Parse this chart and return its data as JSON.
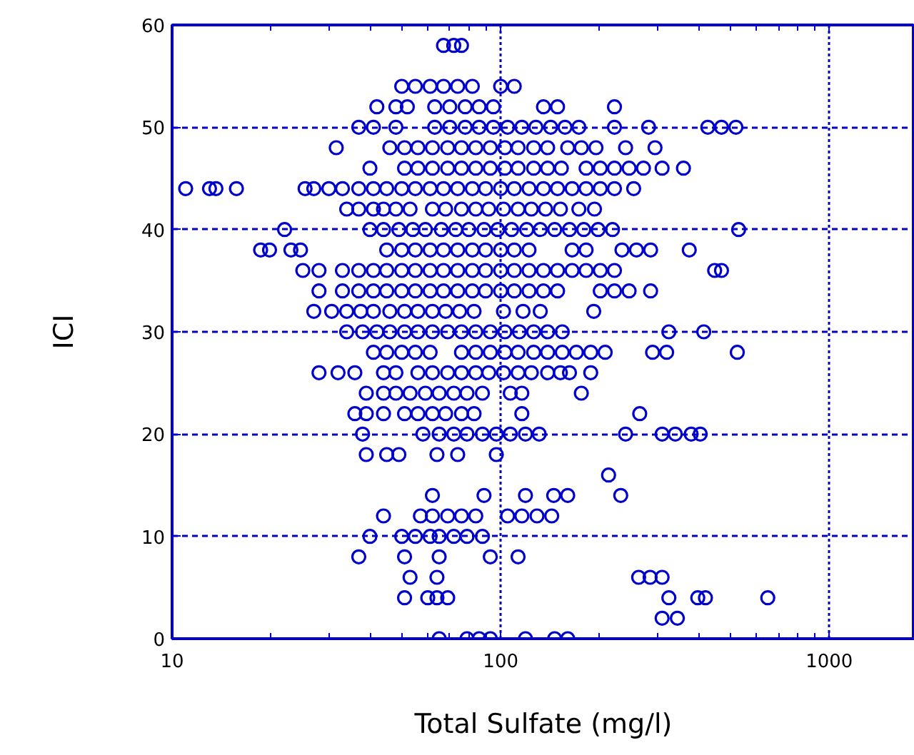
{
  "chart_data": {
    "type": "scatter",
    "xlabel": "Total Sulfate (mg/l)",
    "ylabel": "ICI",
    "log": "x",
    "xlim": [
      10,
      1820
    ],
    "ylim": [
      0,
      60
    ],
    "xticks": [
      10,
      100,
      1000
    ],
    "yticks": [
      0,
      10,
      20,
      30,
      40,
      50,
      60
    ],
    "grid": true,
    "marker": "circle",
    "series": [
      {
        "color": "#0000cc",
        "x": [
          67,
          72,
          76
        ],
        "values": [
          58,
          58,
          58
        ]
      },
      {
        "color": "#0000cc",
        "x": [
          50,
          55,
          61,
          67,
          74,
          82,
          100,
          110
        ],
        "values": [
          54,
          54,
          54,
          54,
          54,
          54,
          54,
          54
        ]
      },
      {
        "color": "#0000cc",
        "x": [
          42,
          48,
          52,
          63,
          70,
          78,
          86,
          95,
          135,
          149,
          222
        ],
        "values": [
          52,
          52,
          52,
          52,
          52,
          52,
          52,
          52,
          52,
          52,
          52
        ]
      },
      {
        "color": "#0000cc",
        "x": [
          37,
          41,
          48,
          63,
          70,
          78,
          86,
          95,
          105,
          116,
          128,
          142,
          157,
          173,
          222,
          282,
          427,
          470,
          520
        ],
        "values": [
          50,
          50,
          50,
          50,
          50,
          50,
          50,
          50,
          50,
          50,
          50,
          50,
          50,
          50,
          50,
          50,
          50,
          50,
          50
        ]
      },
      {
        "color": "#0000cc",
        "x": [
          31.6,
          46,
          51,
          56,
          62,
          69,
          76,
          84,
          93,
          103,
          113,
          126,
          139,
          160,
          176,
          195,
          240,
          295
        ],
        "values": [
          48,
          48,
          48,
          48,
          48,
          48,
          48,
          48,
          48,
          48,
          48,
          48,
          48,
          48,
          48,
          48,
          48,
          48
        ]
      },
      {
        "color": "#0000cc",
        "x": [
          40,
          51,
          56,
          62,
          69,
          76,
          84,
          93,
          103,
          113,
          126,
          139,
          153,
          182,
          201,
          222,
          246,
          272,
          310,
          360
        ],
        "values": [
          46,
          46,
          46,
          46,
          46,
          46,
          46,
          46,
          46,
          46,
          46,
          46,
          46,
          46,
          46,
          46,
          46,
          46,
          46,
          46
        ]
      },
      {
        "color": "#0000cc",
        "x": [
          11,
          13,
          13.6,
          15.7,
          25.4,
          27,
          30,
          33,
          37,
          41,
          45,
          50,
          55,
          61,
          67,
          74,
          82,
          90,
          100,
          110,
          122,
          135,
          149,
          165,
          182,
          201,
          222,
          254
        ],
        "values": [
          44,
          44,
          44,
          44,
          44,
          44,
          44,
          44,
          44,
          44,
          44,
          44,
          44,
          44,
          44,
          44,
          44,
          44,
          44,
          44,
          44,
          44,
          44,
          44,
          44,
          44,
          44,
          44
        ]
      },
      {
        "color": "#0000cc",
        "x": [
          34,
          37,
          41,
          44,
          48,
          53,
          62,
          68,
          76,
          84,
          92,
          102,
          113,
          124,
          137,
          152,
          173,
          193
        ],
        "values": [
          42,
          42,
          42,
          42,
          42,
          42,
          42,
          42,
          42,
          42,
          42,
          42,
          42,
          42,
          42,
          42,
          42,
          42
        ]
      },
      {
        "color": "#0000cc",
        "x": [
          22,
          40,
          44,
          49,
          54,
          59,
          66,
          73,
          80,
          89,
          98,
          108,
          120,
          132,
          146,
          162,
          179,
          198,
          219,
          530
        ],
        "values": [
          40,
          40,
          40,
          40,
          40,
          40,
          40,
          40,
          40,
          40,
          40,
          40,
          40,
          40,
          40,
          40,
          40,
          40,
          40,
          40
        ]
      },
      {
        "color": "#0000cc",
        "x": [
          18.6,
          19.8,
          23,
          24.6,
          45,
          50,
          55,
          61,
          67,
          74,
          82,
          90,
          100,
          110,
          122,
          165,
          182,
          234,
          259,
          286,
          375
        ],
        "values": [
          38,
          38,
          38,
          38,
          38,
          38,
          38,
          38,
          38,
          38,
          38,
          38,
          38,
          38,
          38,
          38,
          38,
          38,
          38,
          38,
          38
        ]
      },
      {
        "color": "#0000cc",
        "x": [
          25,
          28,
          33,
          37,
          41,
          45,
          50,
          55,
          61,
          67,
          74,
          82,
          90,
          100,
          110,
          122,
          135,
          149,
          165,
          182,
          201,
          222,
          448,
          470
        ],
        "values": [
          36,
          36,
          36,
          36,
          36,
          36,
          36,
          36,
          36,
          36,
          36,
          36,
          36,
          36,
          36,
          36,
          36,
          36,
          36,
          36,
          36,
          36,
          36,
          36
        ]
      },
      {
        "color": "#0000cc",
        "x": [
          28,
          33,
          37,
          41,
          45,
          50,
          55,
          61,
          67,
          74,
          82,
          90,
          100,
          110,
          122,
          135,
          149,
          201,
          222,
          246,
          286
        ],
        "values": [
          34,
          34,
          34,
          34,
          34,
          34,
          34,
          34,
          34,
          34,
          34,
          34,
          34,
          34,
          34,
          34,
          34,
          34,
          34,
          34,
          34
        ]
      },
      {
        "color": "#0000cc",
        "x": [
          27,
          30.6,
          34,
          37.5,
          41,
          46,
          51,
          56,
          62,
          68,
          75,
          83,
          102,
          117,
          132,
          192
        ],
        "values": [
          32,
          32,
          32,
          32,
          32,
          32,
          32,
          32,
          32,
          32,
          32,
          32,
          32,
          32,
          32,
          32
        ]
      },
      {
        "color": "#0000cc",
        "x": [
          34,
          38,
          42,
          46,
          51,
          56,
          62,
          69,
          76,
          84,
          93,
          103,
          114,
          126,
          139,
          154,
          325,
          415
        ],
        "values": [
          30,
          30,
          30,
          30,
          30,
          30,
          30,
          30,
          30,
          30,
          30,
          30,
          30,
          30,
          30,
          30,
          30,
          30
        ]
      },
      {
        "color": "#0000cc",
        "x": [
          41,
          45,
          50,
          55,
          61,
          76,
          84,
          93,
          103,
          113,
          126,
          139,
          154,
          170,
          188,
          208,
          290,
          320,
          525
        ],
        "values": [
          28,
          28,
          28,
          28,
          28,
          28,
          28,
          28,
          28,
          28,
          28,
          28,
          28,
          28,
          28,
          28,
          28,
          28,
          28
        ]
      },
      {
        "color": "#0000cc",
        "x": [
          28,
          32,
          36,
          44,
          48,
          56,
          62,
          69,
          76,
          84,
          92,
          102,
          113,
          124,
          139,
          152,
          162,
          188
        ],
        "values": [
          26,
          26,
          26,
          26,
          26,
          26,
          26,
          26,
          26,
          26,
          26,
          26,
          26,
          26,
          26,
          26,
          26,
          26
        ]
      },
      {
        "color": "#0000cc",
        "x": [
          39,
          44,
          48,
          53,
          59,
          65,
          72,
          79,
          88,
          107,
          116,
          176
        ],
        "values": [
          24,
          24,
          24,
          24,
          24,
          24,
          24,
          24,
          24,
          24,
          24,
          24
        ]
      },
      {
        "color": "#0000cc",
        "x": [
          36,
          39,
          44,
          51,
          56,
          62,
          68,
          76,
          83,
          116,
          265
        ],
        "values": [
          22,
          22,
          22,
          22,
          22,
          22,
          22,
          22,
          22,
          22,
          22
        ]
      },
      {
        "color": "#0000cc",
        "x": [
          38,
          58,
          65,
          72,
          79,
          88,
          97,
          107,
          119,
          131,
          240,
          310,
          340,
          380,
          405
        ],
        "values": [
          20,
          20,
          20,
          20,
          20,
          20,
          20,
          20,
          20,
          20,
          20,
          20,
          20,
          20,
          20
        ]
      },
      {
        "color": "#0000cc",
        "x": [
          39,
          45,
          49,
          64,
          74,
          97
        ],
        "values": [
          18,
          18,
          18,
          18,
          18,
          18
        ]
      },
      {
        "color": "#0000cc",
        "x": [
          213
        ],
        "values": [
          16
        ]
      },
      {
        "color": "#0000cc",
        "x": [
          62,
          89,
          119,
          145,
          160,
          232
        ],
        "values": [
          14,
          14,
          14,
          14,
          14,
          14
        ]
      },
      {
        "color": "#0000cc",
        "x": [
          44,
          57,
          62,
          69,
          76,
          84,
          105,
          116,
          129,
          143
        ],
        "values": [
          12,
          12,
          12,
          12,
          12,
          12,
          12,
          12,
          12,
          12
        ]
      },
      {
        "color": "#0000cc",
        "x": [
          40,
          50,
          55,
          61,
          65,
          72,
          79,
          88
        ],
        "values": [
          10,
          10,
          10,
          10,
          10,
          10,
          10,
          10
        ]
      },
      {
        "color": "#0000cc",
        "x": [
          37,
          51,
          65,
          93,
          113
        ],
        "values": [
          8,
          8,
          8,
          8,
          8
        ]
      },
      {
        "color": "#0000cc",
        "x": [
          53,
          64,
          263,
          285,
          310
        ],
        "values": [
          6,
          6,
          6,
          6,
          6
        ]
      },
      {
        "color": "#0000cc",
        "x": [
          51,
          60,
          64,
          69,
          325,
          398,
          420,
          650
        ],
        "values": [
          4,
          4,
          4,
          4,
          4,
          4,
          4,
          4
        ]
      },
      {
        "color": "#0000cc",
        "x": [
          310,
          345
        ],
        "values": [
          2,
          2
        ]
      },
      {
        "color": "#0000cc",
        "x": [
          65,
          79,
          86,
          93,
          119,
          146,
          160
        ],
        "values": [
          0,
          0,
          0,
          0,
          0,
          0,
          0
        ]
      }
    ]
  }
}
